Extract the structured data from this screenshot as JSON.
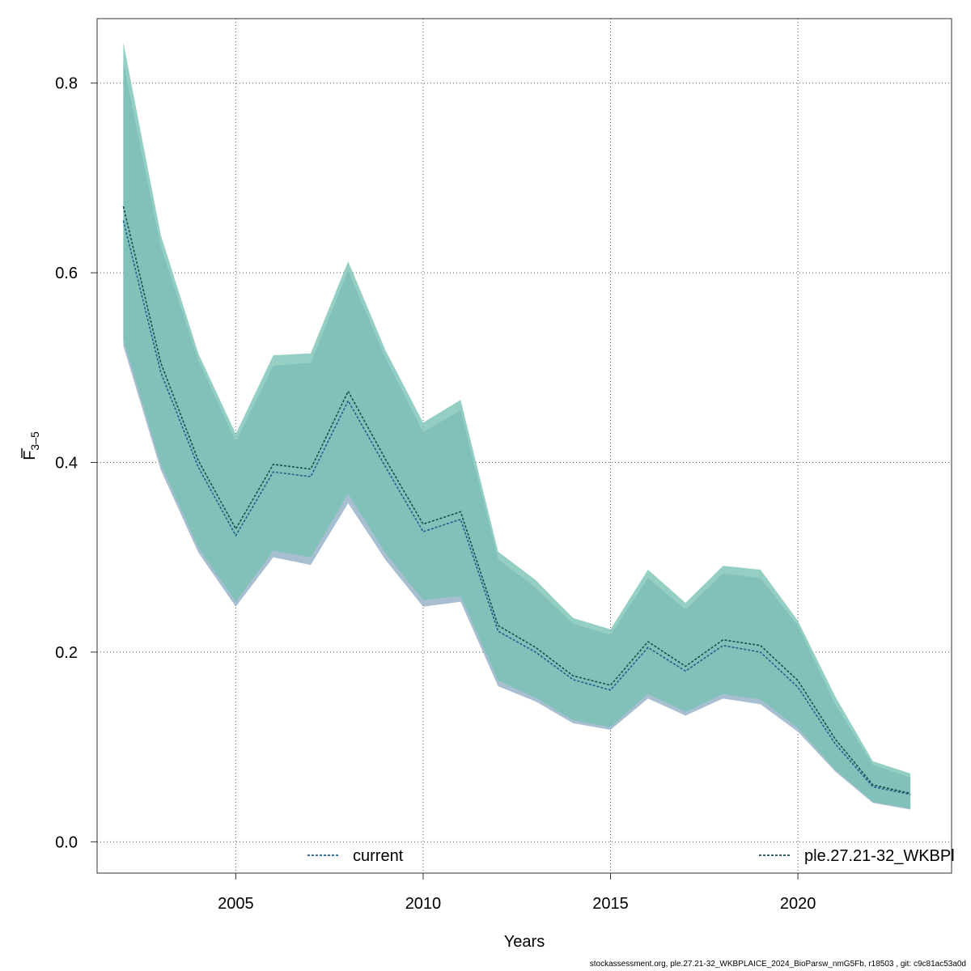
{
  "footer_text": "stockassessment.org, ple.27.21-32_WKBPLAICE_2024_BioParsw_nmG5Fb, r18503 , git: c9c81ac53a0d",
  "chart_data": {
    "type": "area",
    "xlabel": "Years",
    "ylabel_main": "F",
    "ylabel_sub": "3–5",
    "xlim": [
      2001.3,
      2024.1
    ],
    "ylim": [
      -0.033,
      0.868
    ],
    "x_ticks": [
      2005,
      2010,
      2015,
      2020
    ],
    "y_ticks": [
      0.0,
      0.2,
      0.4,
      0.6,
      0.8
    ],
    "y_tick_labels": [
      "0.0",
      "0.2",
      "0.4",
      "0.6",
      "0.8"
    ],
    "grid": true,
    "x": [
      2002,
      2003,
      2004,
      2005,
      2006,
      2007,
      2008,
      2009,
      2010,
      2011,
      2012,
      2013,
      2014,
      2015,
      2016,
      2017,
      2018,
      2019,
      2020,
      2021,
      2022,
      2023
    ],
    "series": [
      {
        "name": "current",
        "color": "#1f5f8b",
        "band_color": "#9fb8cc",
        "line_style": "dotted",
        "legend_position": "bottom-center",
        "values": [
          0.655,
          0.495,
          0.395,
          0.323,
          0.39,
          0.385,
          0.465,
          0.395,
          0.327,
          0.34,
          0.222,
          0.2,
          0.171,
          0.16,
          0.205,
          0.18,
          0.207,
          0.2,
          0.163,
          0.103,
          0.058,
          0.05
        ],
        "lower": [
          0.523,
          0.392,
          0.305,
          0.248,
          0.3,
          0.292,
          0.357,
          0.297,
          0.248,
          0.253,
          0.164,
          0.148,
          0.125,
          0.118,
          0.151,
          0.133,
          0.151,
          0.145,
          0.116,
          0.074,
          0.041,
          0.034
        ],
        "upper": [
          0.822,
          0.628,
          0.508,
          0.422,
          0.502,
          0.505,
          0.602,
          0.51,
          0.432,
          0.455,
          0.298,
          0.268,
          0.23,
          0.218,
          0.278,
          0.245,
          0.283,
          0.278,
          0.228,
          0.145,
          0.081,
          0.068
        ]
      },
      {
        "name": "ple.27.21-32_WKBPl",
        "color": "#1a4d4d",
        "band_color": "#77c1b4",
        "line_style": "dotted",
        "legend_position": "bottom-right",
        "values": [
          0.67,
          0.505,
          0.402,
          0.33,
          0.398,
          0.393,
          0.475,
          0.403,
          0.335,
          0.348,
          0.228,
          0.205,
          0.175,
          0.165,
          0.211,
          0.185,
          0.213,
          0.207,
          0.17,
          0.108,
          0.06,
          0.051
        ],
        "lower": [
          0.53,
          0.398,
          0.31,
          0.253,
          0.307,
          0.3,
          0.367,
          0.304,
          0.255,
          0.259,
          0.17,
          0.152,
          0.128,
          0.121,
          0.156,
          0.137,
          0.156,
          0.15,
          0.12,
          0.076,
          0.042,
          0.035
        ],
        "upper": [
          0.843,
          0.64,
          0.515,
          0.43,
          0.513,
          0.515,
          0.612,
          0.518,
          0.442,
          0.466,
          0.306,
          0.276,
          0.236,
          0.224,
          0.287,
          0.252,
          0.291,
          0.287,
          0.233,
          0.153,
          0.085,
          0.072
        ]
      }
    ]
  }
}
